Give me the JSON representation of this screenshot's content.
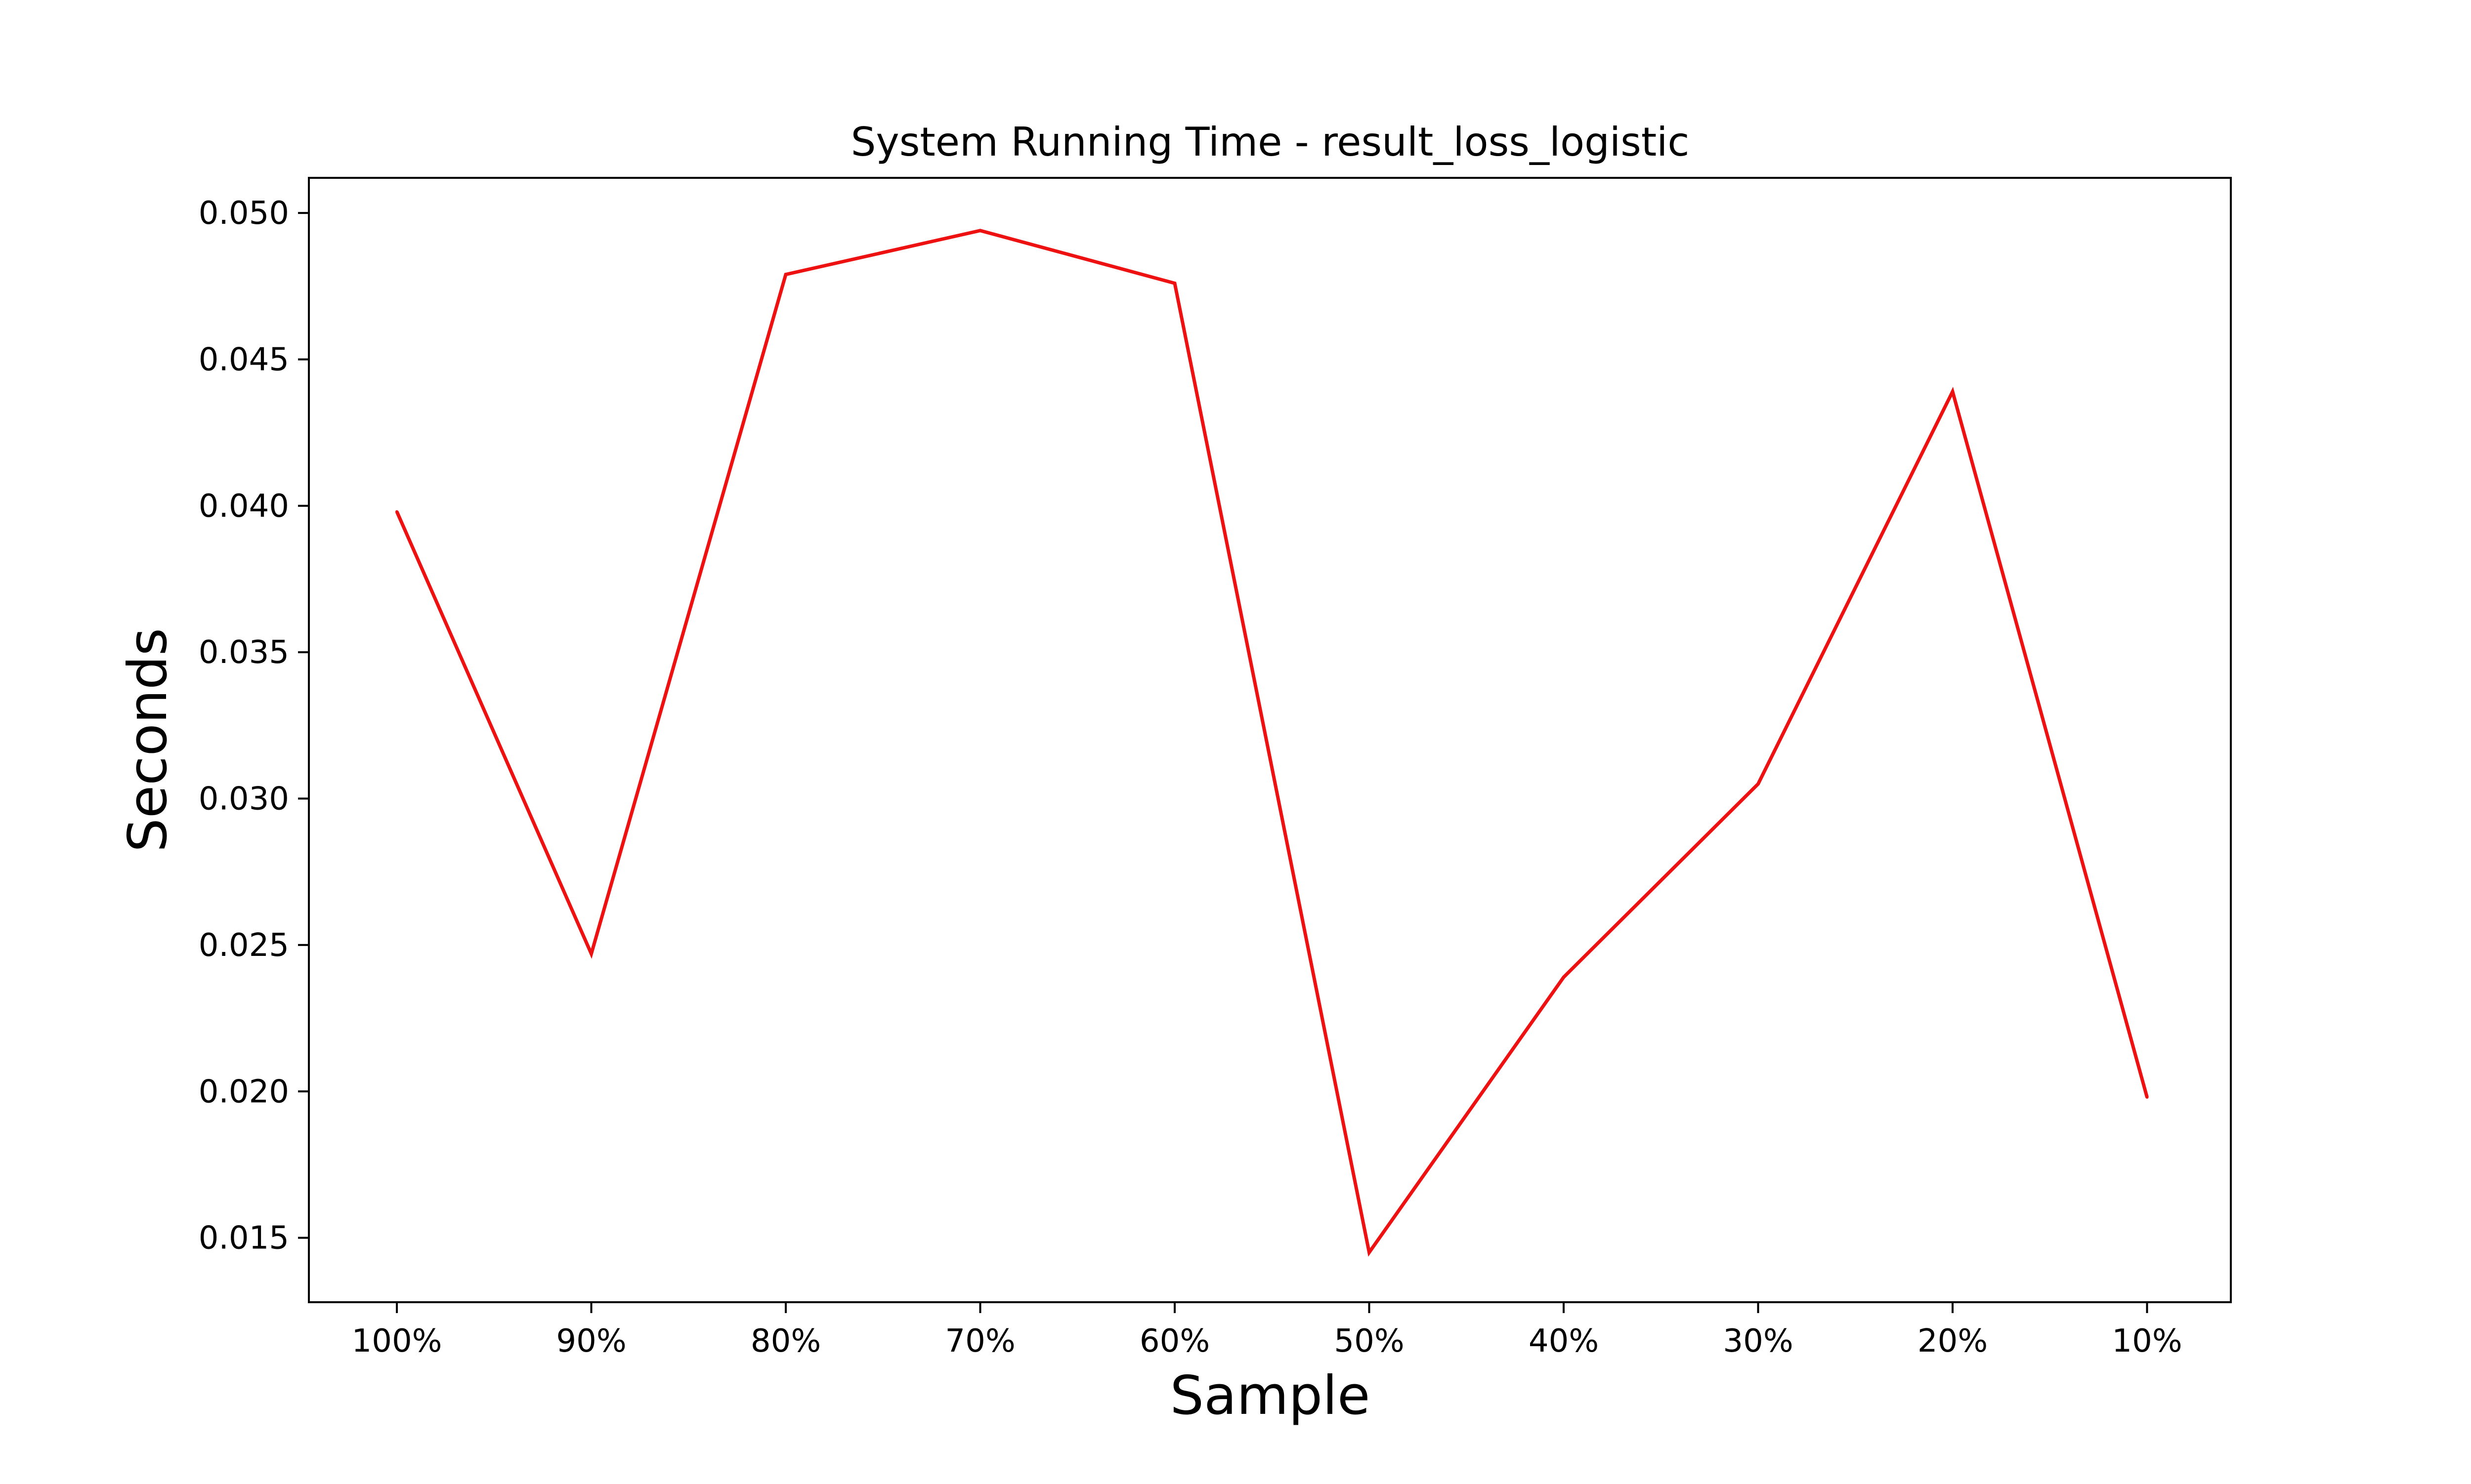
{
  "chart_data": {
    "type": "line",
    "title": "System Running Time - result_loss_logistic",
    "xlabel": "Sample",
    "ylabel": "Seconds",
    "categories": [
      "100%",
      "90%",
      "80%",
      "70%",
      "60%",
      "50%",
      "40%",
      "30%",
      "20%",
      "10%"
    ],
    "series": [
      {
        "color": "#ee1111",
        "values": [
          0.0398,
          0.0247,
          0.0479,
          0.0494,
          0.0476,
          0.0145,
          0.0239,
          0.0305,
          0.0439,
          0.0198
        ]
      }
    ],
    "ylim": [
      0.0128,
      0.0512
    ],
    "yticks": [
      "0.015",
      "0.020",
      "0.025",
      "0.030",
      "0.035",
      "0.040",
      "0.045",
      "0.050"
    ],
    "grid": false,
    "legend": "none"
  }
}
